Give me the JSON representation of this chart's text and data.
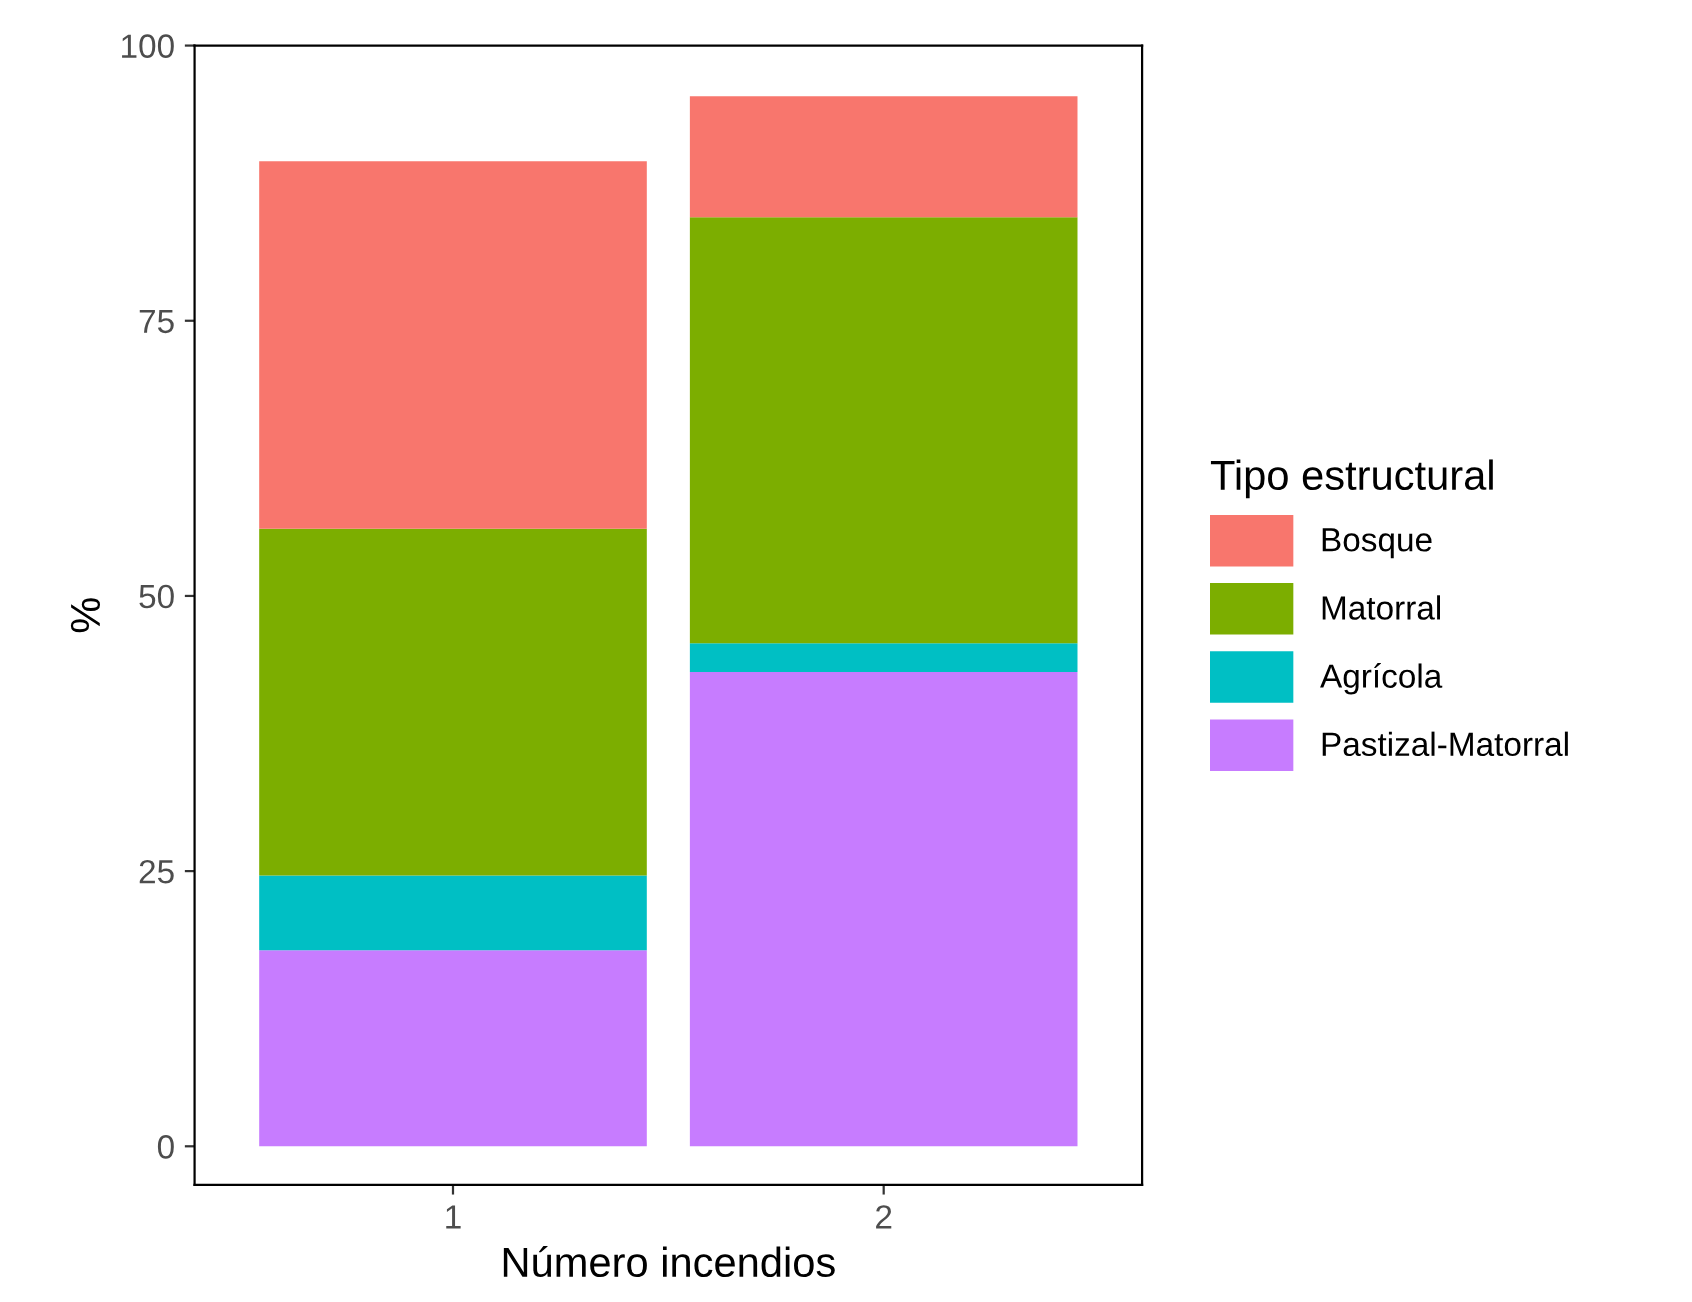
{
  "chart_data": {
    "type": "bar",
    "stacked": true,
    "xlabel": "Número incendios",
    "ylabel": "%",
    "legend_title": "Tipo estructural",
    "legend": "right",
    "grid": false,
    "categories": [
      "1",
      "2"
    ],
    "ylim": [
      -3.5,
      100
    ],
    "yticks": [
      0,
      25,
      50,
      75,
      100
    ],
    "series": [
      {
        "name": "Pastizal-Matorral",
        "color": "#c77cff",
        "values": [
          17.8,
          43.1
        ]
      },
      {
        "name": "Agrícola",
        "color": "#00bfc4",
        "values": [
          6.8,
          2.6
        ]
      },
      {
        "name": "Matorral",
        "color": "#7cae00",
        "values": [
          31.5,
          38.7
        ]
      },
      {
        "name": "Bosque",
        "color": "#f8766d",
        "values": [
          33.4,
          11.0
        ]
      }
    ]
  }
}
